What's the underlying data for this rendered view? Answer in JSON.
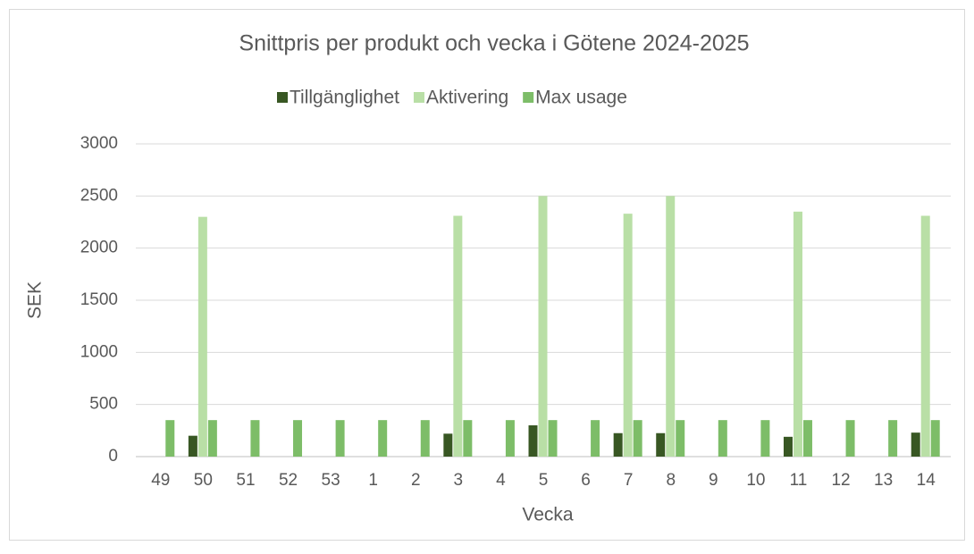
{
  "chart_data": {
    "type": "bar",
    "title": "Snittpris per produkt och vecka i Götene 2024-2025",
    "x_label": "Vecka",
    "y_label": "SEK",
    "categories": [
      "49",
      "50",
      "51",
      "52",
      "53",
      "1",
      "2",
      "3",
      "4",
      "5",
      "6",
      "7",
      "8",
      "9",
      "10",
      "11",
      "12",
      "13",
      "14"
    ],
    "series": [
      {
        "name": "Tillgänglighet",
        "color": "#385723",
        "values": [
          null,
          200,
          null,
          null,
          null,
          null,
          null,
          220,
          null,
          300,
          null,
          225,
          225,
          null,
          null,
          190,
          null,
          null,
          230
        ]
      },
      {
        "name": "Aktivering",
        "color": "#b9dfa6",
        "values": [
          null,
          2300,
          null,
          null,
          null,
          null,
          null,
          2310,
          null,
          2500,
          null,
          2330,
          2500,
          null,
          null,
          2350,
          null,
          null,
          2310
        ]
      },
      {
        "name": "Max usage",
        "color": "#7dbd68",
        "values": [
          350,
          350,
          350,
          350,
          350,
          350,
          350,
          350,
          350,
          350,
          350,
          350,
          350,
          350,
          350,
          350,
          350,
          350,
          350
        ]
      }
    ],
    "ylim": [
      0,
      3000
    ],
    "yticks": [
      0,
      500,
      1000,
      1500,
      2000,
      2500,
      3000
    ],
    "grid": true,
    "legend": "top"
  }
}
